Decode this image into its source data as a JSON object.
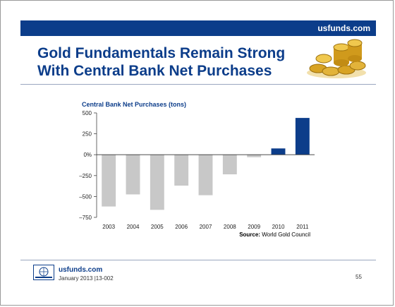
{
  "header": {
    "site": "usfunds.com"
  },
  "title": {
    "line1": "Gold Fundamentals Remain Strong",
    "line2": "With Central Bank Net Purchases"
  },
  "chart_data": {
    "type": "bar",
    "title": "Central Bank Net Purchases (tons)",
    "categories": [
      "2003",
      "2004",
      "2005",
      "2006",
      "2007",
      "2008",
      "2009",
      "2010",
      "2011"
    ],
    "values": [
      -620,
      -475,
      -660,
      -370,
      -485,
      -235,
      -30,
      75,
      440
    ],
    "ylim": [
      -750,
      500
    ],
    "yticks": [
      500,
      250,
      0,
      -250,
      -500,
      -750
    ],
    "ytick_labels": [
      "500",
      "250",
      "0%",
      "–250",
      "–500",
      "–750"
    ],
    "colors": {
      "negative": "#c8c8c8",
      "positive": "#0c3d8a"
    },
    "source_label": "Source:",
    "source_text": "World Gold Council"
  },
  "footer": {
    "site": "usfunds.com",
    "date": "January 2013 |13-002",
    "page": "55"
  }
}
